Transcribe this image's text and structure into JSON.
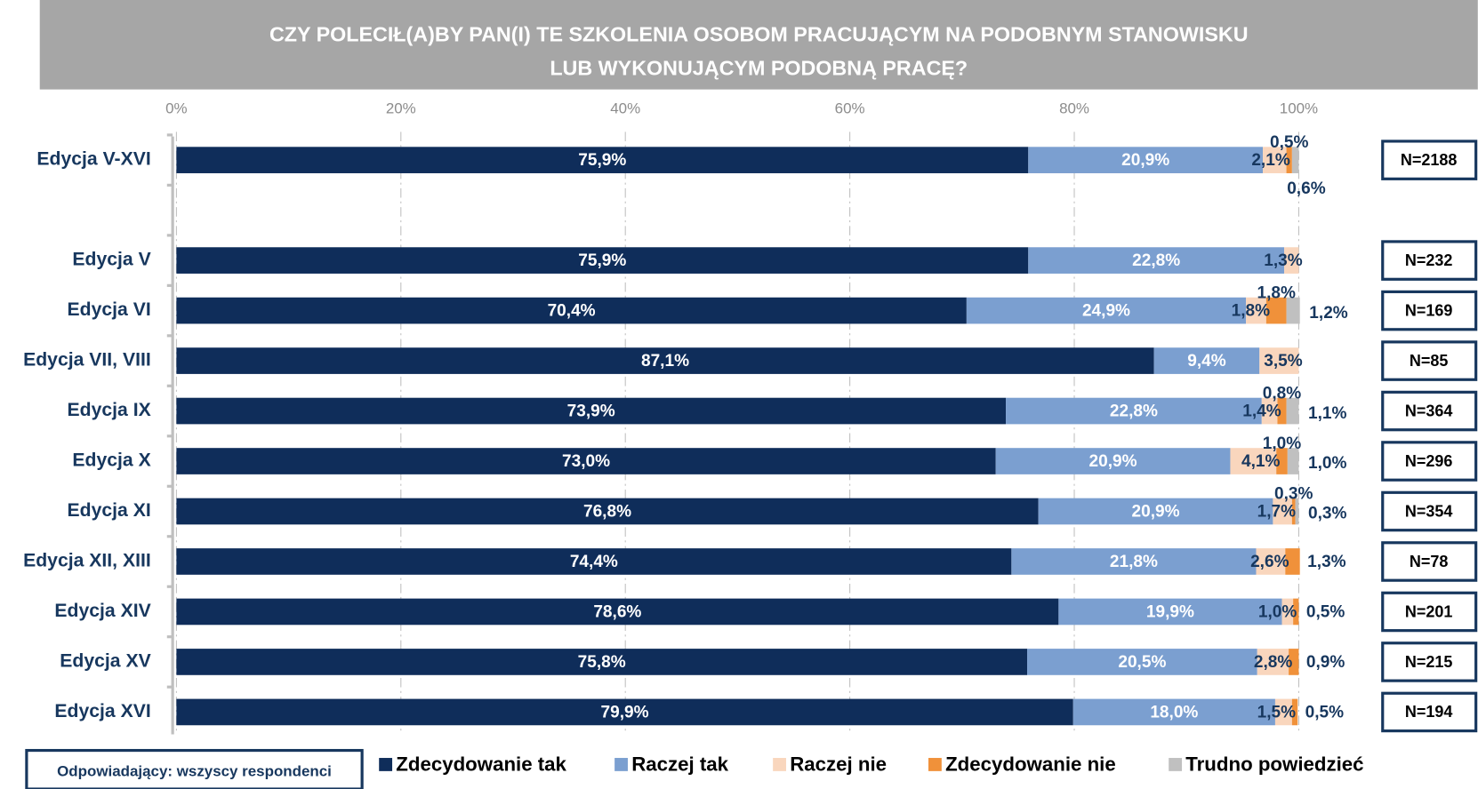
{
  "chart_data": {
    "type": "stacked_bar_horizontal",
    "title": [
      "CZY POLECIŁ(A)BY PAN(I) TE SZKOLENIA OSOBOM PRACUJĄCYM NA PODOBNYM STANOWISKU",
      "LUB WYKONUJĄCYM PODOBNĄ PRACĘ?"
    ],
    "categories": [
      "Edycja V-XVI",
      null,
      "Edycja V",
      "Edycja VI",
      "Edycja VII, VIII",
      "Edycja IX",
      "Edycja X",
      "Edycja XI",
      "Edycja XII, XIII",
      "Edycja XIV",
      "Edycja XV",
      "Edycja XVI"
    ],
    "n_labels": [
      "N=2188",
      null,
      "N=232",
      "N=169",
      "N=85",
      "N=364",
      "N=296",
      "N=354",
      "N=78",
      "N=201",
      "N=215",
      "N=194"
    ],
    "note": "Odpowiadający: wszyscy respondenci",
    "xlim": [
      0,
      100
    ],
    "xticks": [
      {
        "value": 0,
        "label": "0%"
      },
      {
        "value": 20,
        "label": "20%"
      },
      {
        "value": 40,
        "label": "40%"
      },
      {
        "value": 60,
        "label": "60%"
      },
      {
        "value": 80,
        "label": "80%"
      },
      {
        "value": 100,
        "label": "100%"
      }
    ],
    "grid": true,
    "series": [
      {
        "name": "Zdecydowanie tak",
        "color": "#0f2d5a",
        "values": [
          75.9,
          null,
          75.9,
          70.4,
          87.1,
          73.9,
          73.0,
          76.8,
          74.4,
          78.6,
          75.8,
          79.9
        ],
        "value_labels": [
          "75,9%",
          null,
          "75,9%",
          "70,4%",
          "87,1%",
          "73,9%",
          "73,0%",
          "76,8%",
          "74,4%",
          "78,6%",
          "75,8%",
          "79,9%"
        ]
      },
      {
        "name": "Raczej tak",
        "color": "#7b9fd0",
        "values": [
          20.9,
          null,
          22.8,
          24.9,
          9.4,
          22.8,
          20.9,
          20.9,
          21.8,
          19.9,
          20.5,
          18.0
        ],
        "value_labels": [
          "20,9%",
          null,
          "22,8%",
          "24,9%",
          "9,4%",
          "22,8%",
          "20,9%",
          "20,9%",
          "21,8%",
          "19,9%",
          "20,5%",
          "18,0%"
        ]
      },
      {
        "name": "Raczej nie",
        "color": "#f9d6bd",
        "values": [
          2.1,
          null,
          1.3,
          1.8,
          3.5,
          1.4,
          4.1,
          1.7,
          2.6,
          1.0,
          2.8,
          1.5
        ],
        "value_labels": [
          "2,1%",
          null,
          "1,3%",
          "1,8%",
          "3,5%",
          "1,4%",
          "4,1%",
          "1,7%",
          "2,6%",
          "1,0%",
          "2,8%",
          "1,5%"
        ]
      },
      {
        "name": "Zdecydowanie nie",
        "color": "#f0913a",
        "values": [
          0.5,
          null,
          null,
          1.8,
          null,
          0.8,
          1.0,
          0.3,
          1.3,
          0.5,
          0.9,
          0.5
        ],
        "value_labels": [
          "0,5%",
          null,
          null,
          "1,8%",
          null,
          "0,8%",
          "1,0%",
          "0,3%",
          "1,3%",
          "0,5%",
          "0,9%",
          "0,5%"
        ]
      },
      {
        "name": "Trudno powiedzieć",
        "color": "#c0c0c0",
        "values": [
          0.6,
          null,
          null,
          1.2,
          null,
          1.1,
          1.0,
          0.3,
          null,
          null,
          null,
          null
        ],
        "value_labels": [
          "0,6%",
          null,
          null,
          "1,2%",
          null,
          "1,1%",
          "1,0%",
          "0,3%",
          null,
          null,
          null,
          null
        ]
      }
    ]
  }
}
